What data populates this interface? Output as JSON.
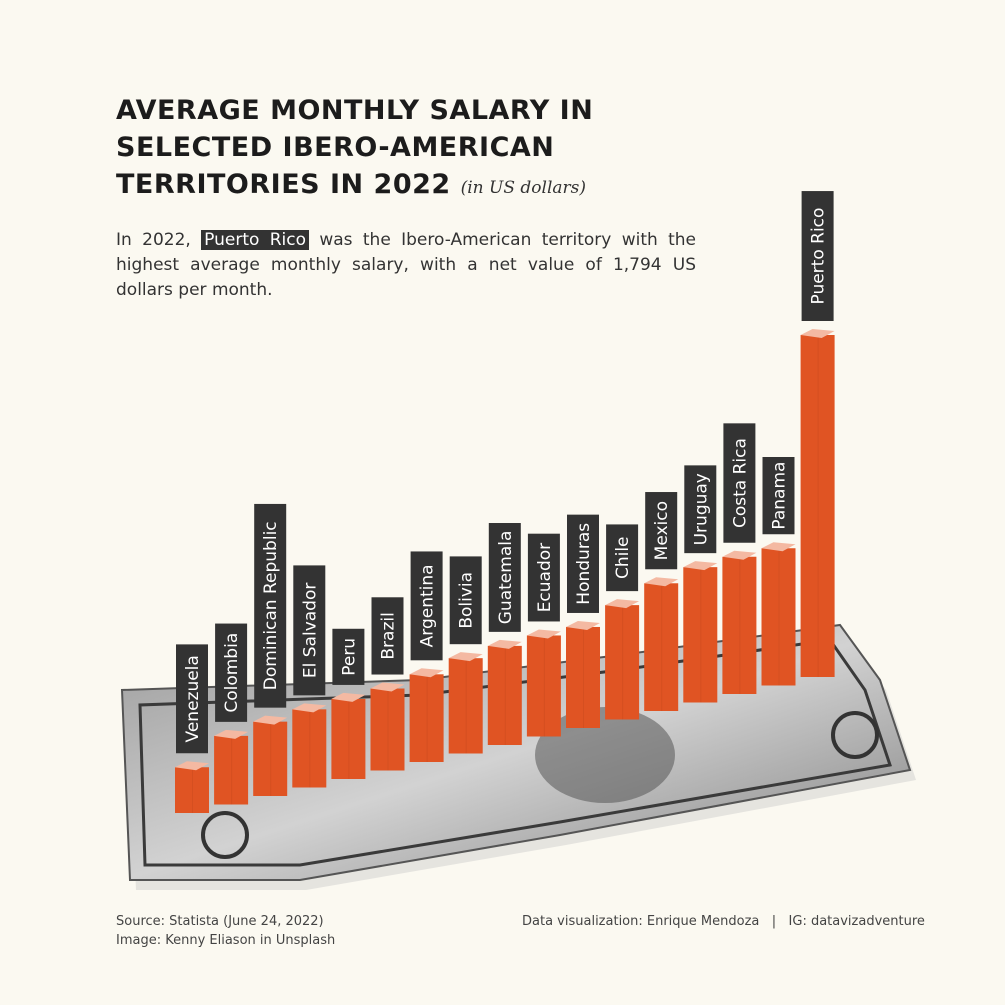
{
  "title": {
    "main": "AVERAGE MONTHLY SALARY IN SELECTED IBERO-AMERICAN TERRITORIES IN 2022",
    "unit": "(in US dollars)"
  },
  "description": {
    "before": "In 2022,",
    "highlight": "Puerto Rico",
    "after": "was the Ibero-American territory with the highest average monthly salary, with a net value of 1,794 US dollars per month."
  },
  "footer": {
    "source": "Source: Statista (June 24, 2022)",
    "image_credit": "Image: Kenny Eliason in Unsplash",
    "credit": "Data visualization: Enrique Mendoza   |   IG: datavizadventure"
  },
  "colors": {
    "bar": "#e05423",
    "bar_top": "#f4b9a2",
    "label_bg": "#333333",
    "label_text": "#ffffff",
    "background": "#fbf9f1"
  },
  "chart_data": {
    "type": "bar",
    "title": "AVERAGE MONTHLY SALARY IN SELECTED IBERO-AMERICAN TERRITORIES IN 2022",
    "subtitle": "(in US dollars)",
    "xlabel": "",
    "ylabel": "",
    "grid": false,
    "categories": [
      "Venezuela",
      "Colombia",
      "Dominican Republic",
      "El Salvador",
      "Peru",
      "Brazil",
      "Argentina",
      "Bolivia",
      "Guatemala",
      "Ecuador",
      "Honduras",
      "Chile",
      "Mexico",
      "Uruguay",
      "Costa Rica",
      "Panama",
      "Puerto Rico"
    ],
    "values": [
      240,
      360,
      390,
      410,
      420,
      430,
      460,
      500,
      520,
      530,
      530,
      600,
      670,
      710,
      720,
      720,
      1794
    ],
    "background_image": "one-dollar-bill"
  }
}
